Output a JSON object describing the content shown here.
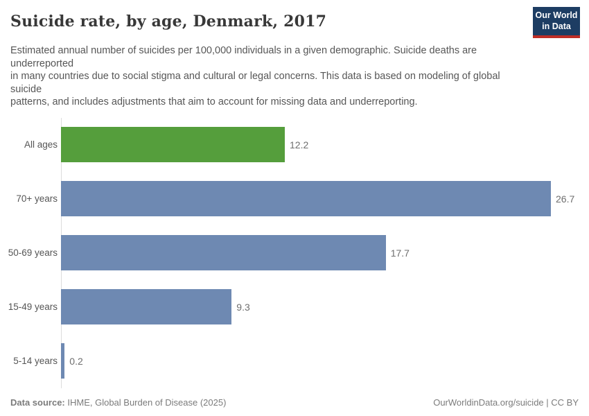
{
  "header": {
    "title": "Suicide rate, by age, Denmark, 2017",
    "logo": {
      "line1": "Our World",
      "line2": "in Data",
      "bg_color": "#1d3d63",
      "stripe_color": "#bf2e26"
    }
  },
  "subtitle": {
    "lines": [
      "Estimated annual number of suicides per 100,000 individuals in a given demographic. Suicide deaths are",
      "underreported",
      "in many countries due to social stigma and cultural or legal concerns. This data is based on modeling of global",
      "suicide",
      "patterns, and includes adjustments that aim to account for missing data and underreporting."
    ]
  },
  "chart_data": {
    "type": "bar",
    "orientation": "horizontal",
    "title": "Suicide rate, by age, Denmark, 2017",
    "categories": [
      "All ages",
      "70+ years",
      "50-69 years",
      "15-49 years",
      "5-14 years"
    ],
    "values": [
      12.2,
      26.7,
      17.7,
      9.3,
      0.2
    ],
    "value_labels": [
      "12.2",
      "26.7",
      "17.7",
      "9.3",
      "0.2"
    ],
    "bar_colors": [
      "#559e3c",
      "#6e89b2",
      "#6e89b2",
      "#6e89b2",
      "#6e89b2"
    ],
    "xlim": [
      0,
      26.7
    ],
    "grid": false,
    "legend": "none"
  },
  "footer": {
    "source_label": "Data source:",
    "source_text": " IHME, Global Burden of Disease (2025)",
    "right_text": "OurWorldinData.org/suicide | CC BY"
  }
}
